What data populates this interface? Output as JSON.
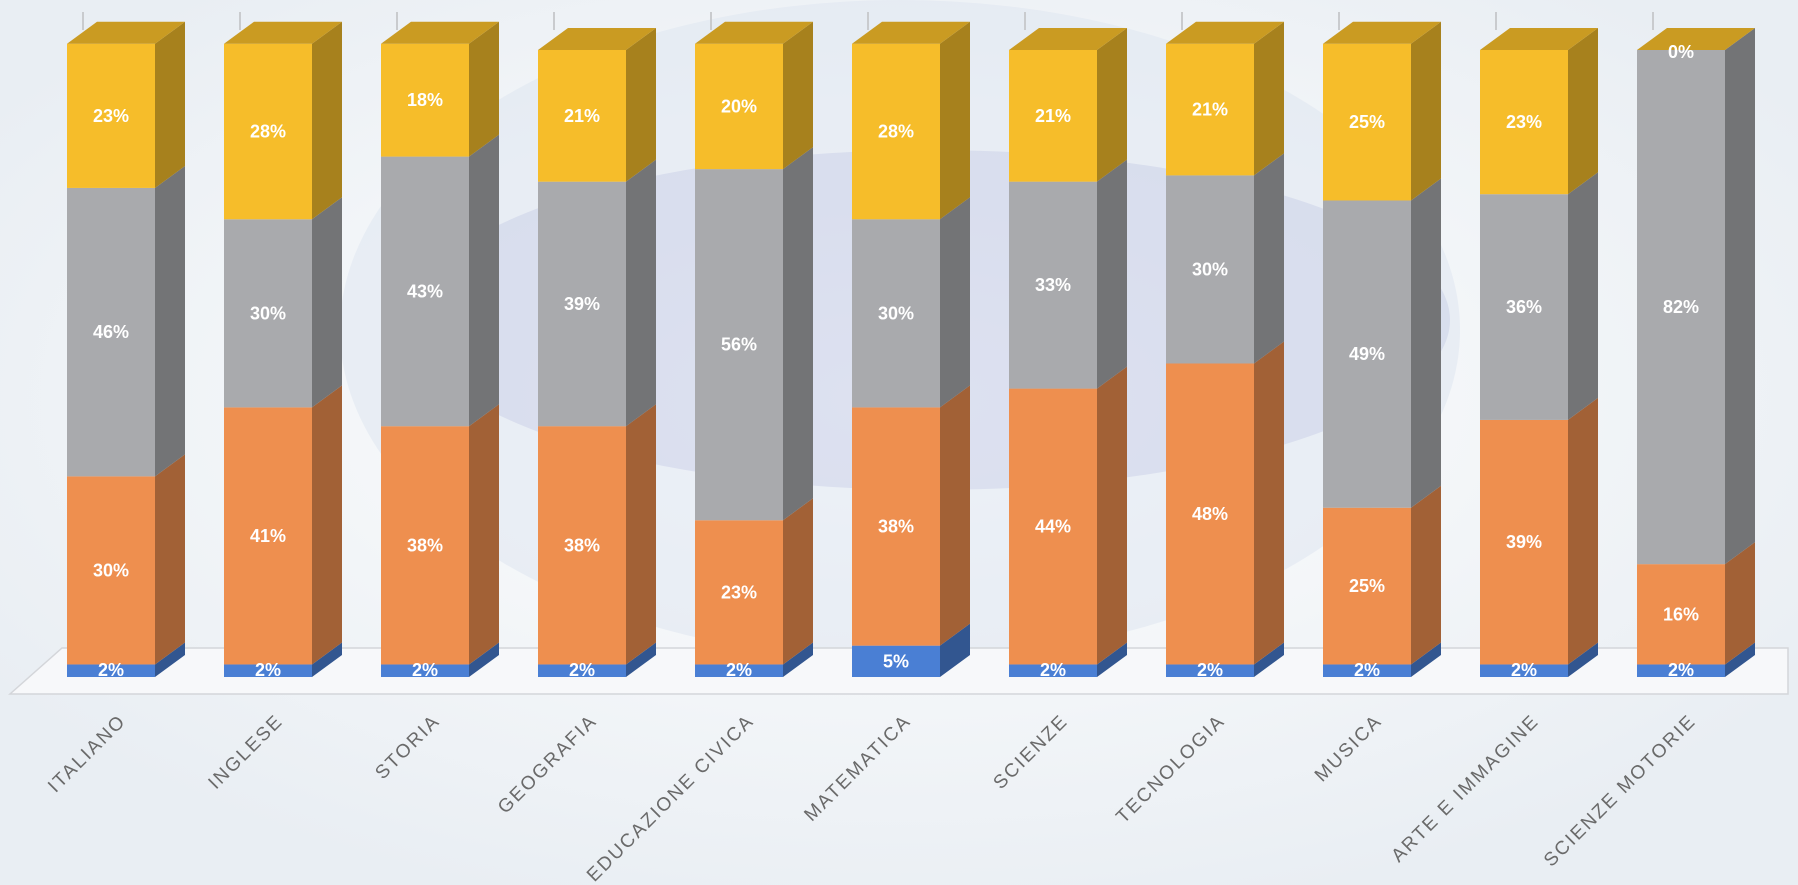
{
  "chart_data": {
    "type": "bar",
    "stacked": true,
    "style": "3d-columns",
    "categories": [
      "ITALIANO",
      "INGLESE",
      "STORIA",
      "GEOGRAFIA",
      "EDUCAZIONE CIVICA",
      "MATEMATICA",
      "SCIENZE",
      "TECNOLOGIA",
      "MUSICA",
      "ARTE E IMMAGINE",
      "SCIENZE MOTORIE"
    ],
    "series": [
      {
        "color": "#4a7fd4",
        "values": [
          2,
          2,
          2,
          2,
          2,
          5,
          2,
          2,
          2,
          2,
          2
        ],
        "labels": [
          "2%",
          "2%",
          "2%",
          "2%",
          "2%",
          "5%",
          "2%",
          "2%",
          "2%",
          "2%",
          "2%"
        ]
      },
      {
        "color": "#ee8f4f",
        "values": [
          30,
          41,
          38,
          38,
          23,
          38,
          44,
          48,
          25,
          39,
          16
        ],
        "labels": [
          "30%",
          "41%",
          "38%",
          "38%",
          "23%",
          "38%",
          "44%",
          "48%",
          "25%",
          "39%",
          "16%"
        ]
      },
      {
        "color": "#a9aaad",
        "values": [
          46,
          30,
          43,
          39,
          56,
          30,
          33,
          30,
          49,
          36,
          82
        ],
        "labels": [
          "46%",
          "30%",
          "43%",
          "39%",
          "56%",
          "30%",
          "33%",
          "30%",
          "49%",
          "36%",
          "82%"
        ]
      },
      {
        "color": "#f6bd2a",
        "values": [
          23,
          28,
          18,
          21,
          20,
          28,
          21,
          21,
          25,
          23,
          0
        ],
        "labels": [
          "23%",
          "28%",
          "18%",
          "21%",
          "20%",
          "28%",
          "21%",
          "21%",
          "25%",
          "23%",
          "0%"
        ]
      }
    ],
    "ylim": [
      0,
      100
    ],
    "grid": false,
    "legend": "none",
    "xlabel": "",
    "ylabel": "",
    "title": ""
  }
}
